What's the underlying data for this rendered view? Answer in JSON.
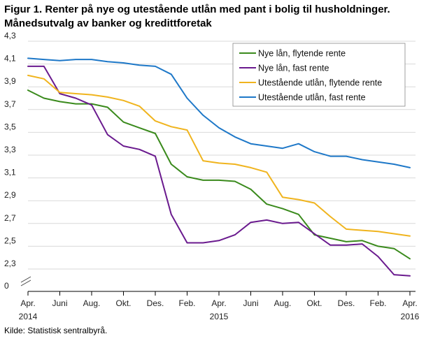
{
  "figure": {
    "title_line1": "Figur 1. Renter på nye og utestående utlån med pant i bolig til husholdninger.",
    "title_line2": "Månedsutvalg av banker og kredittforetak",
    "source": "Kilde: Statistisk sentralbyrå."
  },
  "chart_data": {
    "type": "line",
    "title": "Figur 1. Renter på nye og utestående utlån med pant i bolig til husholdninger. Månedsutvalg av banker og kredittforetak",
    "xlabel": "",
    "ylabel": "",
    "ylim": [
      2.1,
      4.3
    ],
    "y_axis_break": true,
    "yticks": [
      0,
      2.3,
      2.5,
      2.7,
      2.9,
      3.1,
      3.3,
      3.5,
      3.7,
      3.9,
      4.1,
      4.3
    ],
    "ytick_labels": [
      "0",
      "2,3",
      "2,5",
      "2,7",
      "2,9",
      "3,1",
      "3,3",
      "3,5",
      "3,7",
      "3,9",
      "4,1",
      "4,3"
    ],
    "categories": [
      "2014-04",
      "2014-05",
      "2014-06",
      "2014-07",
      "2014-08",
      "2014-09",
      "2014-10",
      "2014-11",
      "2014-12",
      "2015-01",
      "2015-02",
      "2015-03",
      "2015-04",
      "2015-05",
      "2015-06",
      "2015-07",
      "2015-08",
      "2015-09",
      "2015-10",
      "2015-11",
      "2015-12",
      "2016-01",
      "2016-02",
      "2016-03",
      "2016-04"
    ],
    "xticks": [
      {
        "index": 0,
        "line1": "Apr.",
        "line2": "2014"
      },
      {
        "index": 2,
        "line1": "Juni",
        "line2": ""
      },
      {
        "index": 4,
        "line1": "Aug.",
        "line2": ""
      },
      {
        "index": 6,
        "line1": "Okt.",
        "line2": ""
      },
      {
        "index": 8,
        "line1": "Des.",
        "line2": ""
      },
      {
        "index": 10,
        "line1": "Feb.",
        "line2": ""
      },
      {
        "index": 12,
        "line1": "Apr.",
        "line2": "2015"
      },
      {
        "index": 14,
        "line1": "Juni",
        "line2": ""
      },
      {
        "index": 16,
        "line1": "Aug.",
        "line2": ""
      },
      {
        "index": 18,
        "line1": "Okt.",
        "line2": ""
      },
      {
        "index": 20,
        "line1": "Des.",
        "line2": ""
      },
      {
        "index": 22,
        "line1": "Feb.",
        "line2": ""
      },
      {
        "index": 24,
        "line1": "Apr.",
        "line2": "2016"
      }
    ],
    "grid": "horizontal",
    "legend_position": "top-right",
    "series": [
      {
        "name": "Nye lån, flytende rente",
        "color": "#3a8a1c",
        "values": [
          3.87,
          3.8,
          3.77,
          3.75,
          3.75,
          3.72,
          3.59,
          3.54,
          3.49,
          3.22,
          3.11,
          3.08,
          3.08,
          3.07,
          3.0,
          2.87,
          2.83,
          2.78,
          2.6,
          2.57,
          2.54,
          2.55,
          2.5,
          2.48,
          2.39
        ]
      },
      {
        "name": "Nye lån, fast rente",
        "color": "#6a1a8e",
        "values": [
          4.08,
          4.08,
          3.84,
          3.8,
          3.74,
          3.48,
          3.38,
          3.35,
          3.29,
          2.78,
          2.53,
          2.53,
          2.55,
          2.6,
          2.71,
          2.73,
          2.7,
          2.71,
          2.61,
          2.51,
          2.51,
          2.52,
          2.41,
          2.25,
          2.24
        ]
      },
      {
        "name": "Utestående utlån, flytende rente",
        "color": "#f0b41e",
        "values": [
          4.0,
          3.97,
          3.85,
          3.84,
          3.83,
          3.81,
          3.78,
          3.73,
          3.6,
          3.55,
          3.52,
          3.25,
          3.23,
          3.22,
          3.19,
          3.15,
          2.93,
          2.91,
          2.88,
          2.76,
          2.65,
          2.64,
          2.63,
          2.61,
          2.59
        ]
      },
      {
        "name": "Utestående utlån, fast rente",
        "color": "#1e78c8",
        "values": [
          4.15,
          4.14,
          4.13,
          4.14,
          4.14,
          4.12,
          4.11,
          4.09,
          4.08,
          4.01,
          3.8,
          3.65,
          3.54,
          3.46,
          3.4,
          3.38,
          3.36,
          3.4,
          3.33,
          3.29,
          3.29,
          3.26,
          3.24,
          3.22,
          3.19
        ]
      }
    ]
  }
}
